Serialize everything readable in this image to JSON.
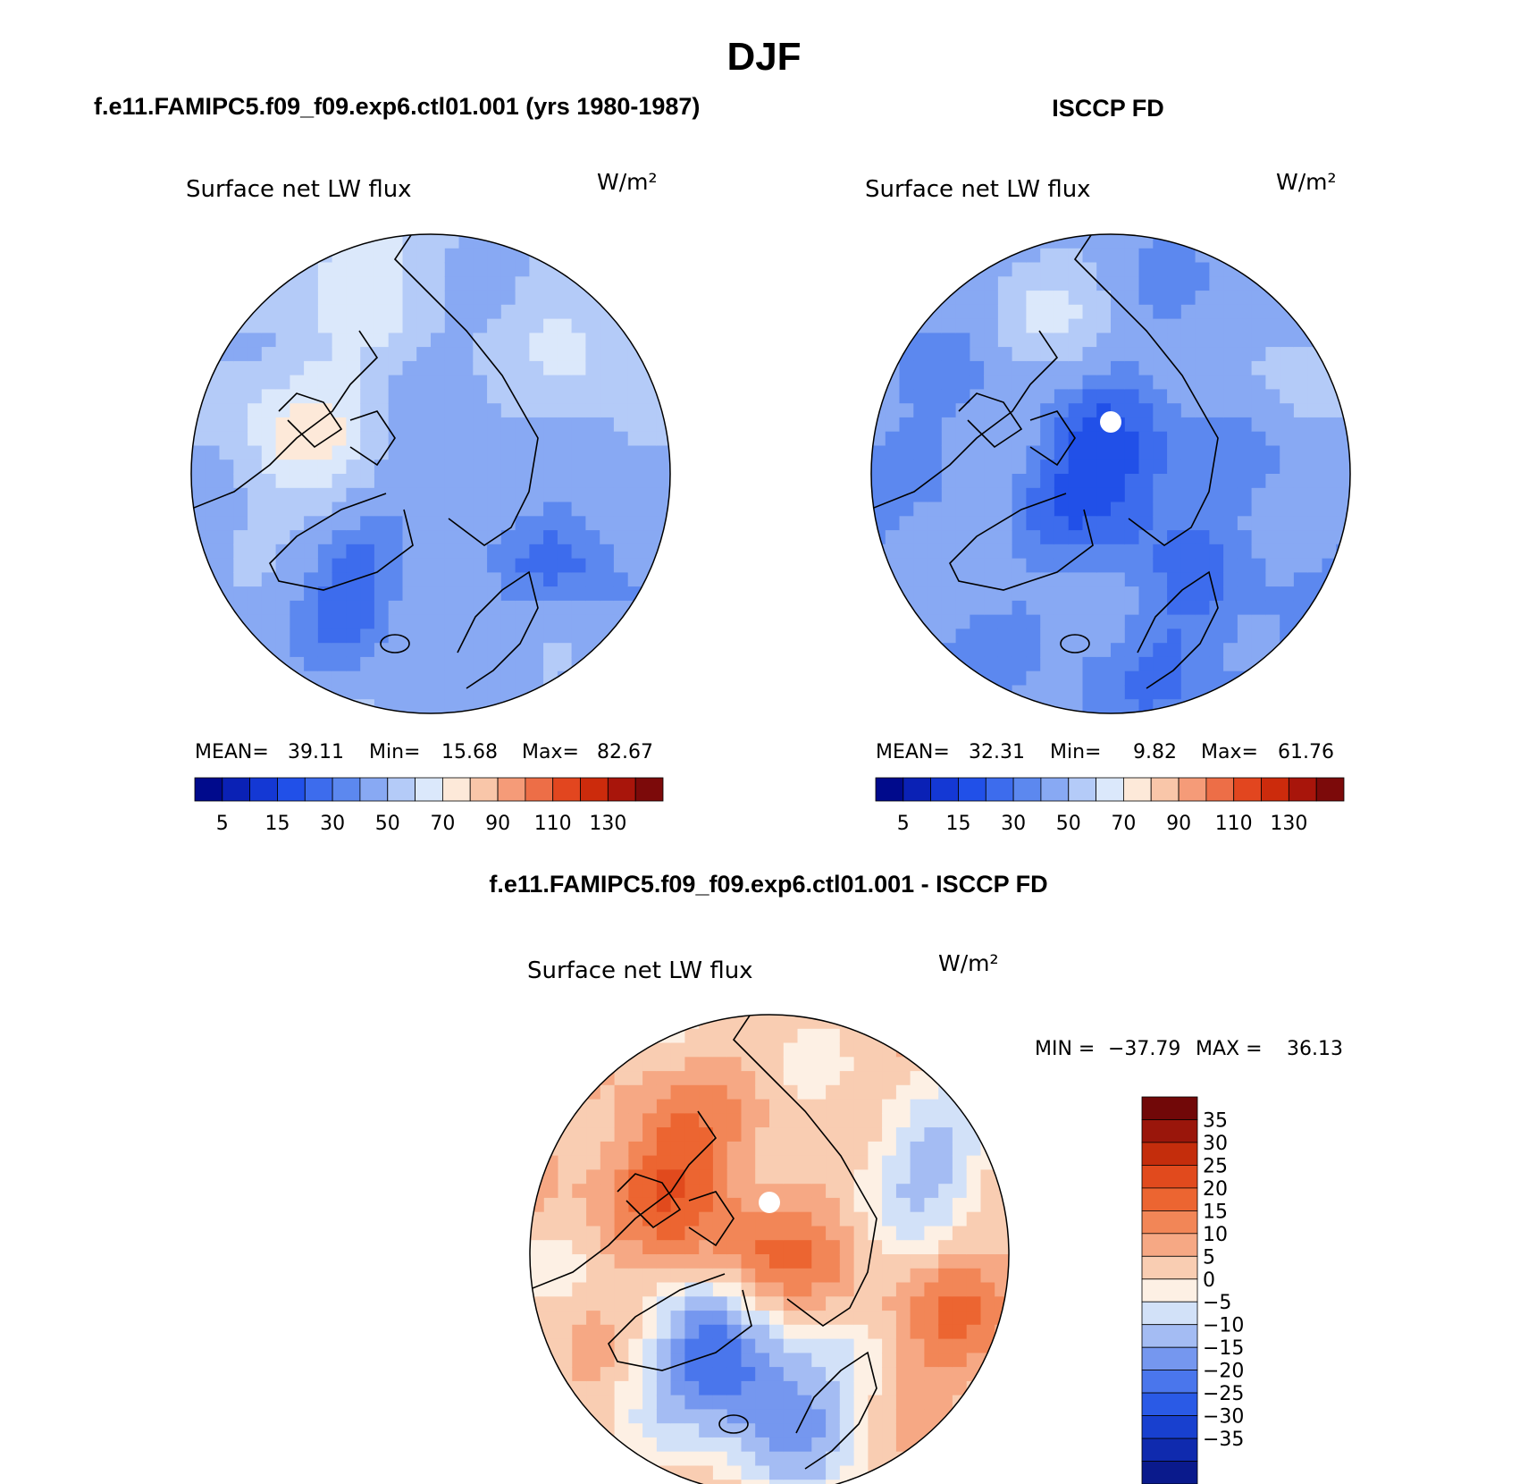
{
  "season": "DJF",
  "colors": {
    "seq_palette": [
      "#000a8c",
      "#0a21b5",
      "#1438d4",
      "#2150e8",
      "#3d6ced",
      "#5c88ef",
      "#88a9f3",
      "#b4cbf8",
      "#dbe8fb",
      "#fde9d9",
      "#f9c6a9",
      "#f59b78",
      "#ed6e47",
      "#e2461f",
      "#cc2b0c",
      "#a8150b",
      "#7c0a0a"
    ],
    "diff_palette": [
      "#0a1a8c",
      "#0f2aae",
      "#1840cf",
      "#2a5ae6",
      "#4a76ec",
      "#7597ef",
      "#a4bcf3",
      "#d2e1f8",
      "#fdf0e4",
      "#f9cdb2",
      "#f6a884",
      "#f28657",
      "#ec6531",
      "#e14a1d",
      "#c42d0c",
      "#9a160b",
      "#710808"
    ]
  },
  "chart_data": [
    {
      "type": "heatmap",
      "projection": "north-polar-stereographic",
      "header": "f.e11.FAMIPC5.f09_f09.exp6.ctl01.001 (yrs 1980-1987)",
      "title": "Surface net LW flux",
      "units": "W/m²",
      "stats": {
        "mean_label": "MEAN=",
        "mean": "39.11",
        "min_label": "Min=",
        "min": "15.68",
        "max_label": "Max=",
        "max": "82.67"
      },
      "levels": [
        5,
        10,
        15,
        20,
        25,
        30,
        40,
        50,
        60,
        70,
        80,
        90,
        100,
        110,
        120,
        130
      ],
      "colorbar_labels": [
        "5",
        "15",
        "30",
        "50",
        "70",
        "90",
        "110",
        "130"
      ],
      "field": {
        "base_value": 38,
        "pole_value": 32,
        "features": [
          {
            "dir": 200,
            "r": 0.55,
            "value": 63
          },
          {
            "dir": 320,
            "r": 0.85,
            "value": 52
          },
          {
            "dir": 30,
            "r": 0.7,
            "value": 24
          },
          {
            "dir": 120,
            "r": 0.6,
            "value": 22
          },
          {
            "dir": 250,
            "r": 0.9,
            "value": 57
          }
        ]
      }
    },
    {
      "type": "heatmap",
      "projection": "north-polar-stereographic",
      "header": "ISCCP FD",
      "title": "Surface net LW flux",
      "units": "W/m²",
      "stats": {
        "mean_label": "MEAN=",
        "mean": "32.31",
        "min_label": "Min=",
        "min": "9.82",
        "max_label": "Max=",
        "max": "61.76"
      },
      "levels": [
        5,
        10,
        15,
        20,
        25,
        30,
        40,
        50,
        60,
        70,
        80,
        90,
        100,
        110,
        120,
        130
      ],
      "colorbar_labels": [
        "5",
        "15",
        "30",
        "50",
        "70",
        "90",
        "110",
        "130"
      ],
      "field": {
        "base_value": 30,
        "pole_value": 14,
        "features": [
          {
            "dir": 250,
            "r": 0.75,
            "value": 49
          },
          {
            "dir": 330,
            "r": 0.9,
            "value": 44
          },
          {
            "dir": 60,
            "r": 0.8,
            "value": 25
          },
          {
            "dir": 150,
            "r": 0.7,
            "value": 35
          }
        ]
      }
    },
    {
      "type": "heatmap",
      "projection": "north-polar-stereographic",
      "header": "f.e11.FAMIPC5.f09_f09.exp6.ctl01.001 - ISCCP FD",
      "title": "Surface net LW flux",
      "units": "W/m²",
      "stats": {
        "min_label": "MIN =",
        "min": "−37.79",
        "max_label": "MAX =",
        "max": "36.13"
      },
      "levels": [
        -35,
        -30,
        -25,
        -20,
        -15,
        -10,
        -5,
        0,
        5,
        10,
        15,
        20,
        25,
        30,
        35
      ],
      "colorbar_labels": [
        "35",
        "30",
        "25",
        "20",
        "15",
        "10",
        "5",
        "0",
        "−5",
        "−10",
        "−15",
        "−20",
        "−25",
        "−30",
        "−35"
      ],
      "field": {
        "base_value": 8,
        "pole_value": 20,
        "features": [
          {
            "dir": 115,
            "r": 0.5,
            "value": -18
          },
          {
            "dir": 80,
            "r": 0.7,
            "value": -8
          },
          {
            "dir": 330,
            "r": 0.75,
            "value": -6
          },
          {
            "dir": 220,
            "r": 0.55,
            "value": 24
          },
          {
            "dir": 20,
            "r": 0.85,
            "value": 18
          }
        ]
      }
    }
  ]
}
